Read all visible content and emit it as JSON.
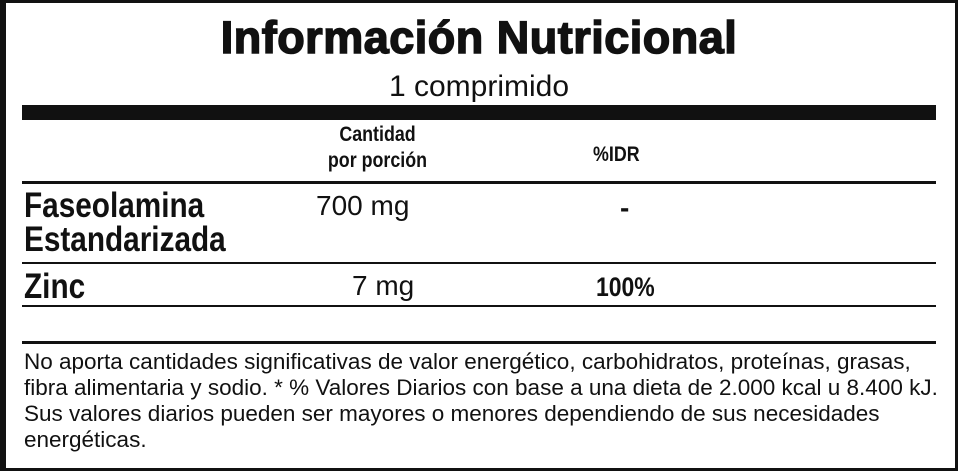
{
  "title": "Información Nutricional",
  "serving": "1 comprimido",
  "columns": {
    "amount_line1": "Cantidad",
    "amount_line2": "por porción",
    "idr": "%IDR"
  },
  "rows": [
    {
      "name_line1": "Faseolamina",
      "name_line2": "Estandarizada",
      "amount": "700 mg",
      "idr": "-"
    },
    {
      "name_line1": "Zinc",
      "amount": "7 mg",
      "idr": "100%"
    }
  ],
  "footnote": "No aporta cantidades significativas de valor energético, carbohidratos, proteínas, grasas, fibra alimentaria y sodio. * % Valores Diarios con base a una dieta de 2.000 kcal u 8.400 kJ. Sus valores diarios pueden ser mayores o menores dependiendo de sus necesidades energéticas."
}
